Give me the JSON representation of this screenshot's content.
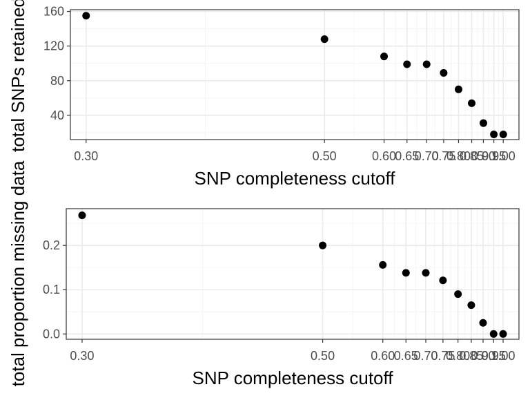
{
  "chart_data": [
    {
      "type": "scatter",
      "xlabel": "SNP completeness cutoff",
      "ylabel": "total SNPs retained",
      "x_ticks": [
        "0.30",
        "0.50",
        "0.60",
        "0.65",
        "0.70",
        "0.75",
        "0.80",
        "0.85",
        "0.90",
        "0.95",
        "1.00"
      ],
      "y_ticks": [
        "40",
        "80",
        "120",
        "160"
      ],
      "xlim": [
        0.3,
        1.0
      ],
      "ylim": [
        12,
        162
      ],
      "grid": true,
      "point_color": "#000000",
      "points": [
        {
          "x": 0.3,
          "y": 155
        },
        {
          "x": 0.5,
          "y": 128
        },
        {
          "x": 0.6,
          "y": 108
        },
        {
          "x": 0.65,
          "y": 99
        },
        {
          "x": 0.7,
          "y": 99
        },
        {
          "x": 0.75,
          "y": 89
        },
        {
          "x": 0.8,
          "y": 70
        },
        {
          "x": 0.85,
          "y": 54
        },
        {
          "x": 0.9,
          "y": 31
        },
        {
          "x": 0.95,
          "y": 18
        },
        {
          "x": 1.0,
          "y": 18
        }
      ]
    },
    {
      "type": "scatter",
      "xlabel": "SNP completeness cutoff",
      "ylabel": "total proportion missing data",
      "x_ticks": [
        "0.30",
        "0.50",
        "0.60",
        "0.65",
        "0.70",
        "0.75",
        "0.80",
        "0.85",
        "0.90",
        "0.95",
        "1.00"
      ],
      "y_ticks": [
        "0.0",
        "0.1",
        "0.2"
      ],
      "xlim": [
        0.3,
        1.0
      ],
      "ylim": [
        -0.012,
        0.283
      ],
      "grid": true,
      "point_color": "#000000",
      "points": [
        {
          "x": 0.3,
          "y": 0.268
        },
        {
          "x": 0.5,
          "y": 0.2
        },
        {
          "x": 0.6,
          "y": 0.156
        },
        {
          "x": 0.65,
          "y": 0.138
        },
        {
          "x": 0.7,
          "y": 0.138
        },
        {
          "x": 0.75,
          "y": 0.121
        },
        {
          "x": 0.8,
          "y": 0.09
        },
        {
          "x": 0.85,
          "y": 0.065
        },
        {
          "x": 0.9,
          "y": 0.025
        },
        {
          "x": 0.95,
          "y": 0.0
        },
        {
          "x": 1.0,
          "y": 0.0
        }
      ]
    }
  ]
}
